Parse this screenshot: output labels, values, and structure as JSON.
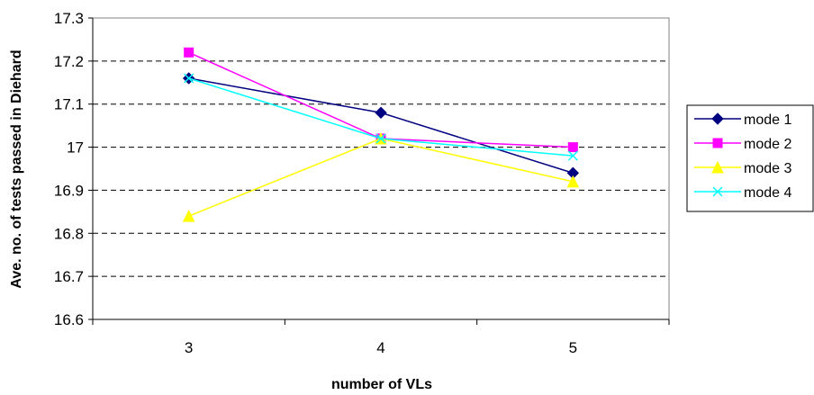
{
  "chart_data": {
    "type": "line",
    "title": "",
    "xlabel": "number of VLs",
    "ylabel": "Ave. no. of tests passed in Diehard",
    "categories": [
      "3",
      "4",
      "5"
    ],
    "ylim": [
      16.6,
      17.3
    ],
    "yticks": [
      "16.6",
      "16.7",
      "16.8",
      "16.9",
      "17",
      "17.1",
      "17.2",
      "17.3"
    ],
    "grid": true,
    "legend_position": "right",
    "series": [
      {
        "name": "mode 1",
        "values": [
          17.16,
          17.08,
          16.94
        ],
        "color": "#000080",
        "marker": "diamond"
      },
      {
        "name": "mode 2",
        "values": [
          17.22,
          17.02,
          17.0
        ],
        "color": "#ff00ff",
        "marker": "square"
      },
      {
        "name": "mode 3",
        "values": [
          16.84,
          17.02,
          16.92
        ],
        "color": "#ffff00",
        "marker": "triangle"
      },
      {
        "name": "mode 4",
        "values": [
          17.16,
          17.02,
          16.98
        ],
        "color": "#00ffff",
        "marker": "x"
      }
    ]
  }
}
